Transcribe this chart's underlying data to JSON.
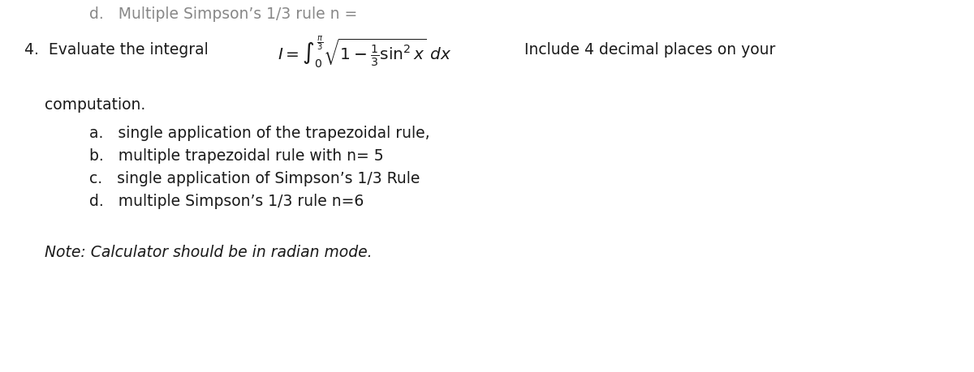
{
  "background_color": "#ffffff",
  "text_color": "#1a1a1a",
  "header_color": "#888888",
  "header_text": "d.   Multiple Simpson’s 1/3 rule n =",
  "number_text": "4.  Evaluate the integral",
  "formula_latex": "$I = \\int_0^{\\frac{\\pi}{3}} \\sqrt{1 - \\frac{1}{3}\\sin^2 x}\\; dx$",
  "suffix_text": " Include 4 decimal places on your",
  "continuation_text": "computation.",
  "items": [
    "a.   single application of the trapezoidal rule,",
    "b.   multiple trapezoidal rule with n= 5",
    "c.   single application of Simpson’s 1/3 Rule",
    "d.   multiple Simpson’s 1/3 rule n=6"
  ],
  "note_text": "Note: Calculator should be in radian mode.",
  "font_size": 13.5,
  "formula_font_size": 14.5,
  "note_font_size": 13.5
}
